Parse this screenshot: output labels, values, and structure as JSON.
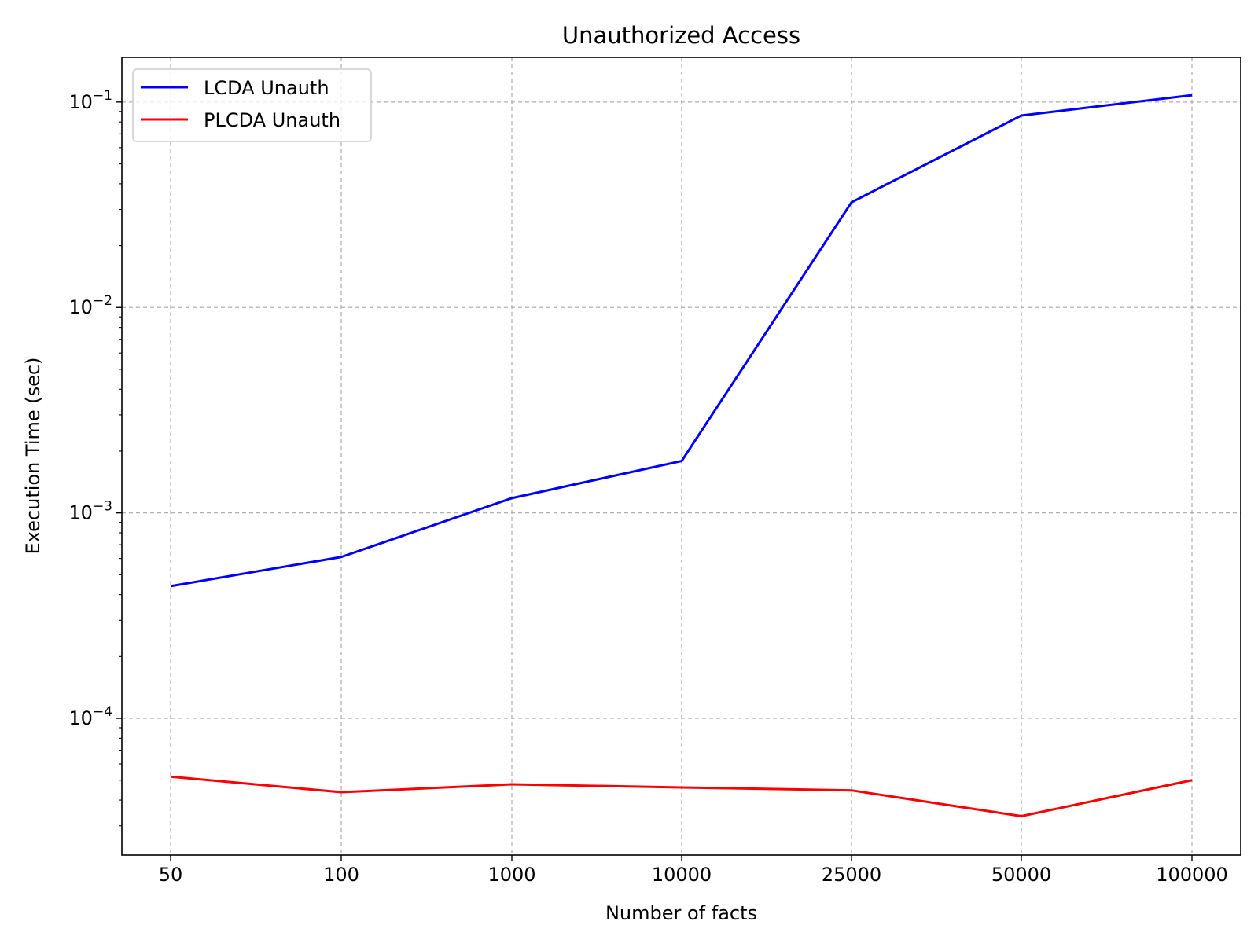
{
  "chart_data": {
    "type": "line",
    "title": "Unauthorized Access",
    "xlabel": "Number of facts",
    "ylabel": "Execution Time (sec)",
    "categories": [
      "50",
      "100",
      "1000",
      "10000",
      "25000",
      "50000",
      "100000"
    ],
    "y_scale": "log",
    "ylim": [
      2.16e-05,
      0.165
    ],
    "y_ticks": [
      {
        "base": "10",
        "exp": "−4",
        "value": 0.0001
      },
      {
        "base": "10",
        "exp": "−3",
        "value": 0.001
      },
      {
        "base": "10",
        "exp": "−2",
        "value": 0.01
      },
      {
        "base": "10",
        "exp": "−1",
        "value": 0.1
      }
    ],
    "grid": true,
    "legend_position": "top-left",
    "series": [
      {
        "name": "LCDA Unauth",
        "color": "#0000ff",
        "values": [
          0.00044,
          0.00061,
          0.00118,
          0.00179,
          0.0325,
          0.086,
          0.108
        ]
      },
      {
        "name": "PLCDA Unauth",
        "color": "#ff0000",
        "values": [
          5.2e-05,
          4.37e-05,
          4.77e-05,
          4.61e-05,
          4.46e-05,
          3.34e-05,
          5e-05
        ]
      }
    ]
  }
}
